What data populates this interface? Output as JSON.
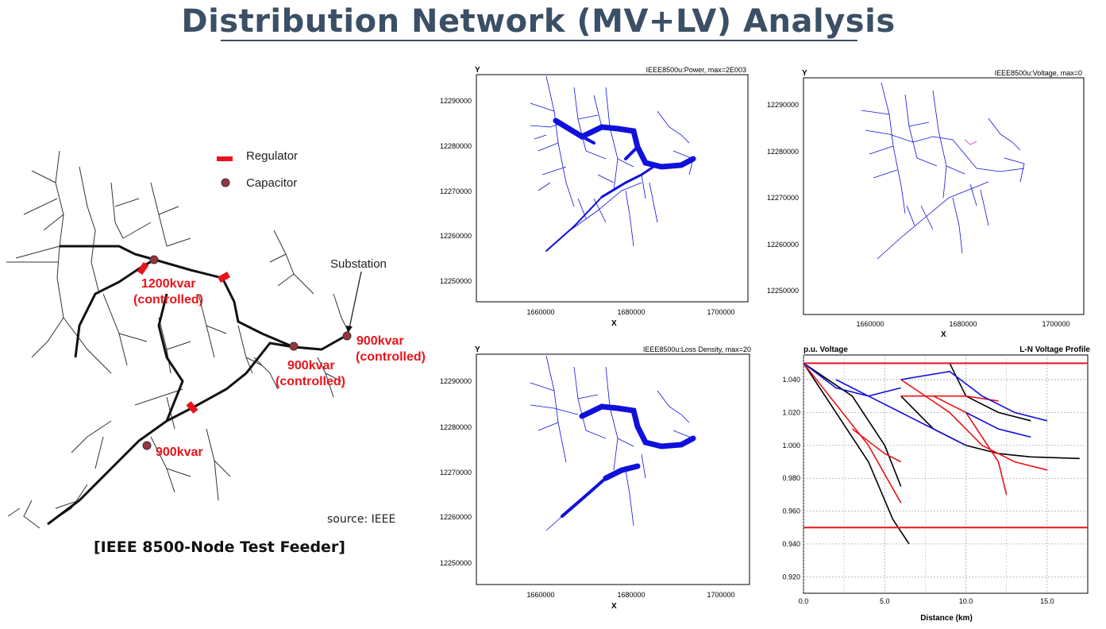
{
  "title": "Distribution Network (MV+LV) Analysis",
  "left": {
    "legend": {
      "regulator": "Regulator",
      "capacitor": "Capacitor"
    },
    "substation": "Substation",
    "caps": [
      {
        "kvar": "1200kvar",
        "mode": "(controlled)"
      },
      {
        "kvar": "900kvar",
        "mode": "(controlled)"
      },
      {
        "kvar": "900kvar",
        "mode": "(controlled)"
      },
      {
        "kvar": "900kvar",
        "mode": ""
      }
    ],
    "source": "source: IEEE",
    "caption": "[IEEE 8500-Node Test Feeder]"
  },
  "plots": {
    "power": {
      "ylabel": "Y",
      "title": "IEEE8500u:Power, max=2E003",
      "xlabel": "X",
      "yticks": [
        "12290000",
        "12280000",
        "12270000",
        "12260000",
        "12250000"
      ],
      "xticks": [
        "1660000",
        "1680000",
        "1700000"
      ]
    },
    "voltage": {
      "ylabel": "Y",
      "title": "IEEE8500u:Voltage, max=0",
      "xlabel": "X",
      "yticks": [
        "12290000",
        "12280000",
        "12270000",
        "12260000",
        "12250000"
      ],
      "xticks": [
        "1660000",
        "1680000",
        "1700000"
      ]
    },
    "loss": {
      "ylabel": "Y",
      "title": "IEEE8500u:Loss Density, max=20",
      "xlabel": "X",
      "yticks": [
        "12290000",
        "12280000",
        "12270000",
        "12260000",
        "12250000"
      ],
      "xticks": [
        "1660000",
        "1680000",
        "1700000"
      ]
    }
  },
  "chart_data": {
    "type": "line",
    "title": "L-N Voltage Profile",
    "ylabel": "p.u. Voltage",
    "xlabel": "Distance (km)",
    "xlim": [
      0,
      17.5
    ],
    "ylim": [
      0.91,
      1.055
    ],
    "xticks": [
      "0.0",
      "5.0",
      "10.0",
      "15.0"
    ],
    "yticks": [
      "1.040",
      "1.020",
      "1.000",
      "0.980",
      "0.960",
      "0.940",
      "0.920"
    ],
    "limits": [
      1.05,
      0.95
    ],
    "grid": true,
    "colors": {
      "limit": "#e8141b",
      "phaseA": "#000000",
      "phaseB": "#e8141b",
      "phaseC": "#1010dd"
    },
    "series": [
      {
        "color": "#000000",
        "points": [
          [
            0,
            1.05
          ],
          [
            2,
            1.02
          ],
          [
            4,
            0.99
          ],
          [
            5.5,
            0.955
          ],
          [
            6.5,
            0.94
          ]
        ]
      },
      {
        "color": "#000000",
        "points": [
          [
            0,
            1.05
          ],
          [
            3,
            1.03
          ],
          [
            5,
            1.0
          ],
          [
            6,
            0.975
          ]
        ]
      },
      {
        "color": "#000000",
        "points": [
          [
            6,
            1.03
          ],
          [
            8,
            1.01
          ],
          [
            10,
            1.0
          ],
          [
            12,
            0.995
          ],
          [
            14,
            0.993
          ],
          [
            17,
            0.992
          ]
        ]
      },
      {
        "color": "#000000",
        "points": [
          [
            9,
            1.05
          ],
          [
            10,
            1.03
          ],
          [
            12,
            1.02
          ],
          [
            14,
            1.015
          ]
        ]
      },
      {
        "color": "#e8141b",
        "points": [
          [
            0,
            1.05
          ],
          [
            2,
            1.025
          ],
          [
            4,
            1.0
          ],
          [
            6,
            0.965
          ]
        ]
      },
      {
        "color": "#e8141b",
        "points": [
          [
            3,
            1.01
          ],
          [
            5,
            0.995
          ],
          [
            6,
            0.99
          ]
        ]
      },
      {
        "color": "#e8141b",
        "points": [
          [
            6,
            1.04
          ],
          [
            9,
            1.02
          ],
          [
            11,
            1.0
          ],
          [
            13,
            0.99
          ],
          [
            15,
            0.985
          ]
        ]
      },
      {
        "color": "#e8141b",
        "points": [
          [
            8,
            1.03
          ],
          [
            10,
            1.02
          ],
          [
            12,
            0.99
          ],
          [
            12.5,
            0.97
          ]
        ]
      },
      {
        "color": "#e8141b",
        "points": [
          [
            6,
            1.03
          ],
          [
            8,
            1.03
          ],
          [
            10,
            1.03
          ],
          [
            12,
            1.027
          ]
        ]
      },
      {
        "color": "#1010dd",
        "points": [
          [
            0,
            1.05
          ],
          [
            2,
            1.035
          ],
          [
            4,
            1.03
          ],
          [
            6,
            1.02
          ],
          [
            8,
            1.01
          ],
          [
            10,
            1.0
          ]
        ]
      },
      {
        "color": "#1010dd",
        "points": [
          [
            6,
            1.04
          ],
          [
            9,
            1.045
          ],
          [
            11,
            1.03
          ],
          [
            13,
            1.02
          ],
          [
            15,
            1.015
          ]
        ]
      },
      {
        "color": "#1010dd",
        "points": [
          [
            2,
            1.04
          ],
          [
            4,
            1.03
          ],
          [
            6,
            1.035
          ]
        ]
      },
      {
        "color": "#1010dd",
        "points": [
          [
            10,
            1.02
          ],
          [
            12,
            1.01
          ],
          [
            14,
            1.005
          ]
        ]
      }
    ]
  }
}
